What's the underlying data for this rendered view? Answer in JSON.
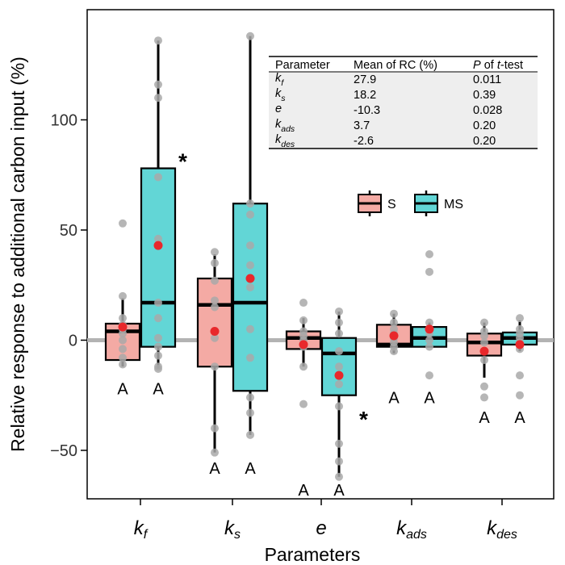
{
  "chart_data": {
    "type": "box",
    "xlabel": "Parameters",
    "ylabel": "Relative response to additional carbon input (%)",
    "ylim": [
      -72,
      150
    ],
    "yticks": [
      -50,
      0,
      50,
      100
    ],
    "reference_line": 0,
    "categories": [
      {
        "base": "k",
        "sub": "f"
      },
      {
        "base": "k",
        "sub": "s"
      },
      {
        "base": "e",
        "sub": ""
      },
      {
        "base": "k",
        "sub": "ads"
      },
      {
        "base": "k",
        "sub": "des"
      }
    ],
    "series": [
      {
        "name": "S",
        "color": "#f4aaa4",
        "boxes": [
          {
            "q1": -9,
            "median": 4,
            "q3": 7.5,
            "whisker_low": -12,
            "whisker_high": 19,
            "mean": 6,
            "points": [
              53,
              20,
              10,
              7,
              5,
              3,
              0,
              -4,
              -8,
              -11
            ],
            "letter": "A",
            "letter_y": -22
          },
          {
            "q1": -12,
            "median": 16,
            "q3": 28,
            "whisker_low": -51,
            "whisker_high": 39,
            "mean": 4,
            "points": [
              40,
              35,
              27,
              18,
              15,
              4,
              1,
              -12,
              -40,
              -51
            ],
            "letter": "A",
            "letter_y": -58
          },
          {
            "q1": -4,
            "median": 1,
            "q3": 4,
            "whisker_low": -12,
            "whisker_high": 10,
            "mean": -2,
            "points": [
              17,
              9,
              4,
              2,
              0,
              -3,
              -12,
              -29
            ],
            "letter": "A",
            "letter_y": -68
          },
          {
            "q1": -3,
            "median": -2,
            "q3": 7,
            "whisker_low": -6,
            "whisker_high": 12,
            "mean": 2,
            "points": [
              12,
              8,
              5,
              3,
              1,
              -1,
              -3,
              -5
            ],
            "letter": "A",
            "letter_y": -26
          },
          {
            "q1": -7,
            "median": -1,
            "q3": 3,
            "whisker_low": -17,
            "whisker_high": 8,
            "mean": -5,
            "points": [
              8,
              4,
              2,
              -1,
              -5,
              -9,
              -21,
              -26
            ],
            "letter": "A",
            "letter_y": -35
          }
        ]
      },
      {
        "name": "MS",
        "color": "#62d6d6",
        "boxes": [
          {
            "q1": -3,
            "median": 17,
            "q3": 78,
            "whisker_low": -13,
            "whisker_high": 136,
            "mean": 43,
            "points": [
              136,
              116,
              110,
              74,
              46,
              17,
              10,
              1,
              -3,
              -7,
              -12,
              -13
            ],
            "letter": "A",
            "letter_y": -22,
            "star_y": 82
          },
          {
            "q1": -23,
            "median": 17,
            "q3": 62,
            "whisker_low": -43,
            "whisker_high": 138,
            "mean": 28,
            "points": [
              138,
              62,
              57,
              43,
              34,
              24,
              5,
              -8,
              -26,
              -33,
              -43
            ],
            "letter": "A",
            "letter_y": -58
          },
          {
            "q1": -25,
            "median": -6,
            "q3": 1,
            "whisker_low": -62,
            "whisker_high": 13,
            "mean": -16,
            "points": [
              13,
              8,
              3,
              -5,
              -12,
              -20,
              -30,
              -47,
              -55,
              -62
            ],
            "letter": "A",
            "letter_y": -68,
            "star_y": -35
          },
          {
            "q1": -3,
            "median": 1,
            "q3": 6,
            "whisker_low": -3,
            "whisker_high": 8,
            "mean": 5,
            "points": [
              39,
              31,
              8,
              5,
              3,
              0,
              -3,
              -16
            ],
            "letter": "A",
            "letter_y": -26
          },
          {
            "q1": -2,
            "median": 1,
            "q3": 3.5,
            "whisker_low": -5,
            "whisker_high": 9,
            "mean": -2,
            "points": [
              10,
              5,
              3,
              1,
              -1,
              -4,
              -16,
              -25
            ],
            "letter": "A",
            "letter_y": -35
          }
        ]
      }
    ],
    "mean_color": "#e8282b",
    "point_color": "#a9a9a9",
    "legend": {
      "placement": "center-right",
      "entries": [
        "S",
        "MS"
      ]
    },
    "inset_table": {
      "headers": [
        "Parameter",
        "Mean of RC (%)",
        "P of t-test"
      ],
      "header_p_prefix": "P",
      "header_p_mid": " of ",
      "header_p_suffix": "t",
      "header_p_tail": "-test",
      "rows": [
        {
          "param": {
            "base": "k",
            "sub": "f"
          },
          "mean": "27.9",
          "p": "0.011"
        },
        {
          "param": {
            "base": "k",
            "sub": "s"
          },
          "mean": "18.2",
          "p": "0.39"
        },
        {
          "param": {
            "base": "e",
            "sub": ""
          },
          "mean": "-10.3",
          "p": "0.028"
        },
        {
          "param": {
            "base": "k",
            "sub": "ads"
          },
          "mean": "3.7",
          "p": "0.20"
        },
        {
          "param": {
            "base": "k",
            "sub": "des"
          },
          "mean": "-2.6",
          "p": "0.20"
        }
      ]
    }
  }
}
